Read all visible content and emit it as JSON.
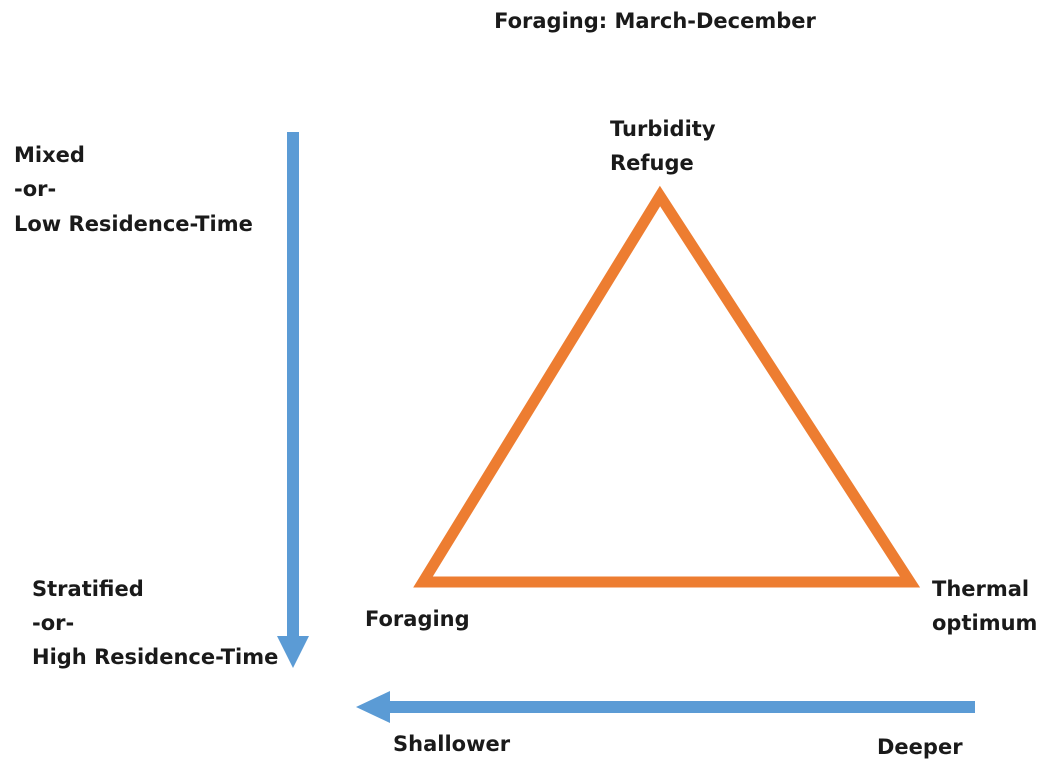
{
  "title": "Foraging: March-December",
  "vertical_axis": {
    "top": [
      "Mixed",
      "-or-",
      "Low Residence-Time"
    ],
    "bottom": [
      "Stratified",
      "-or-",
      "High Residence-Time"
    ]
  },
  "horizontal_axis": {
    "left": "Shallower",
    "right": "Deeper"
  },
  "nodes": [
    {
      "label": [
        "Turbidity",
        "Refuge"
      ]
    },
    {
      "label": [
        "Foraging"
      ]
    },
    {
      "label": [
        "Thermal",
        "optimum"
      ]
    }
  ]
}
